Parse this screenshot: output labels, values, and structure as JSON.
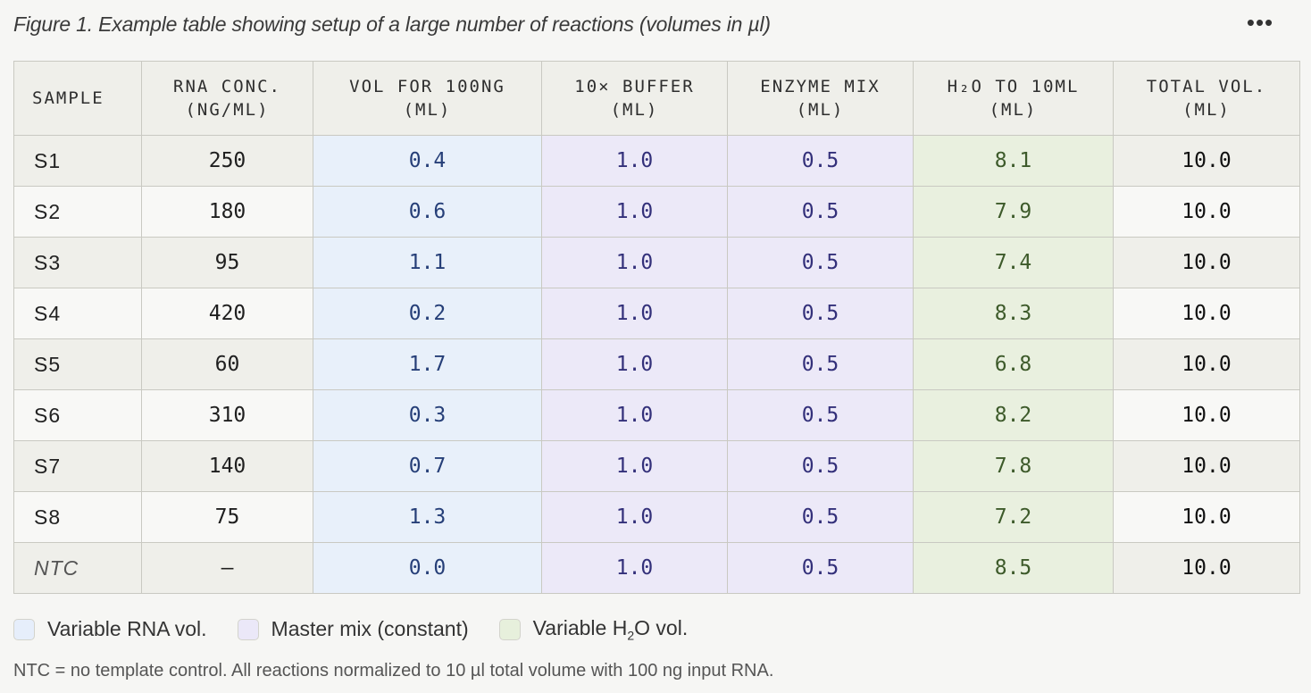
{
  "caption": "Figure 1. Example table showing setup of a large number of reactions (volumes in µl)",
  "menu_glyph": "•••",
  "table": {
    "headers": [
      {
        "line1": "SAMPLE",
        "line2": ""
      },
      {
        "line1": "RNA CONC.",
        "line2": "(NG/ML)"
      },
      {
        "line1": "VOL FOR 100NG",
        "line2": "(ML)"
      },
      {
        "line1": "10× BUFFER",
        "line2": "(ML)"
      },
      {
        "line1": "ENZYME MIX",
        "line2": "(ML)"
      },
      {
        "line1": "H₂O TO 10ML",
        "line2": "(ML)"
      },
      {
        "line1": "TOTAL VOL.",
        "line2": "(ML)"
      }
    ],
    "rows": [
      {
        "sample": "S1",
        "conc": "250",
        "rna": "0.4",
        "buffer": "1.0",
        "enzyme": "0.5",
        "h2o": "8.1",
        "total": "10.0"
      },
      {
        "sample": "S2",
        "conc": "180",
        "rna": "0.6",
        "buffer": "1.0",
        "enzyme": "0.5",
        "h2o": "7.9",
        "total": "10.0"
      },
      {
        "sample": "S3",
        "conc": "95",
        "rna": "1.1",
        "buffer": "1.0",
        "enzyme": "0.5",
        "h2o": "7.4",
        "total": "10.0"
      },
      {
        "sample": "S4",
        "conc": "420",
        "rna": "0.2",
        "buffer": "1.0",
        "enzyme": "0.5",
        "h2o": "8.3",
        "total": "10.0"
      },
      {
        "sample": "S5",
        "conc": "60",
        "rna": "1.7",
        "buffer": "1.0",
        "enzyme": "0.5",
        "h2o": "6.8",
        "total": "10.0"
      },
      {
        "sample": "S6",
        "conc": "310",
        "rna": "0.3",
        "buffer": "1.0",
        "enzyme": "0.5",
        "h2o": "8.2",
        "total": "10.0"
      },
      {
        "sample": "S7",
        "conc": "140",
        "rna": "0.7",
        "buffer": "1.0",
        "enzyme": "0.5",
        "h2o": "7.8",
        "total": "10.0"
      },
      {
        "sample": "S8",
        "conc": "75",
        "rna": "1.3",
        "buffer": "1.0",
        "enzyme": "0.5",
        "h2o": "7.2",
        "total": "10.0"
      },
      {
        "sample": "NTC",
        "conc": "—",
        "rna": "0.0",
        "buffer": "1.0",
        "enzyme": "0.5",
        "h2o": "8.5",
        "total": "10.0"
      }
    ]
  },
  "legend": {
    "rna_label": "Variable RNA vol.",
    "mix_label": "Master mix (constant)",
    "h2o_prefix": "Variable H",
    "h2o_sub": "2",
    "h2o_suffix": "O vol.",
    "colors": {
      "rna": "#e6eefb",
      "mix": "#ebe8f8",
      "h2o": "#e7f0dc"
    }
  },
  "footnote": "NTC = no template control. All reactions normalized to 10 µl total volume with 100 ng input RNA."
}
